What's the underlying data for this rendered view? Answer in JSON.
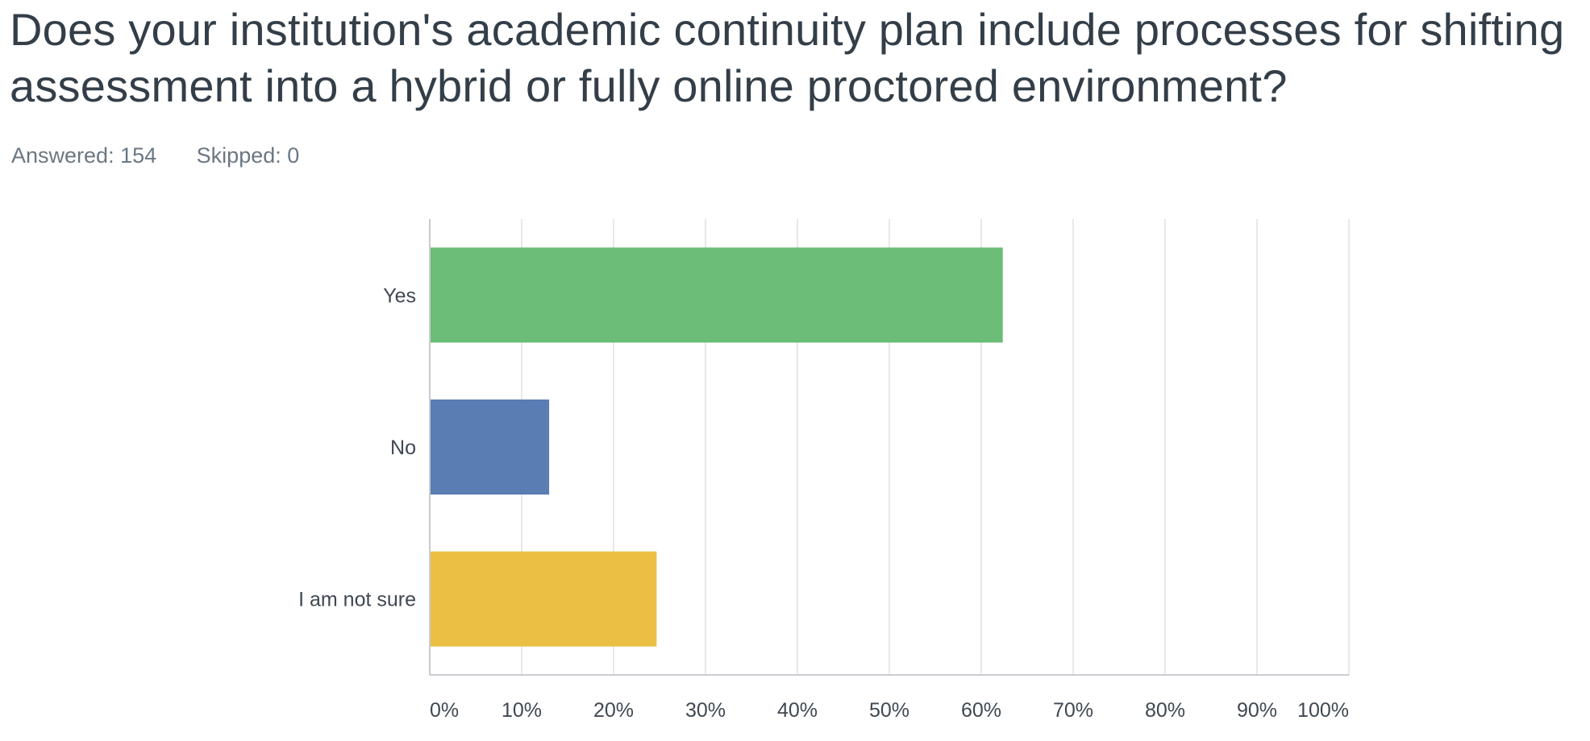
{
  "question": {
    "title": "Does your institution's academic continuity plan include processes for shifting assessment into a hybrid or fully online proctored environment?"
  },
  "stats": {
    "answered_label": "Answered",
    "answered_value": "154",
    "skipped_label": "Skipped",
    "skipped_value": "0"
  },
  "chart_data": {
    "type": "bar",
    "orientation": "horizontal",
    "categories": [
      "Yes",
      "No",
      "I am not sure"
    ],
    "values": [
      62.34,
      12.99,
      24.68
    ],
    "unit": "%",
    "colors": [
      "#6bbd77",
      "#5a7db3",
      "#ebbf43"
    ],
    "xlim": [
      0,
      100
    ],
    "xticks": [
      "0%",
      "10%",
      "20%",
      "30%",
      "40%",
      "50%",
      "60%",
      "70%",
      "80%",
      "90%",
      "100%"
    ],
    "grid": true,
    "legend": "none"
  }
}
